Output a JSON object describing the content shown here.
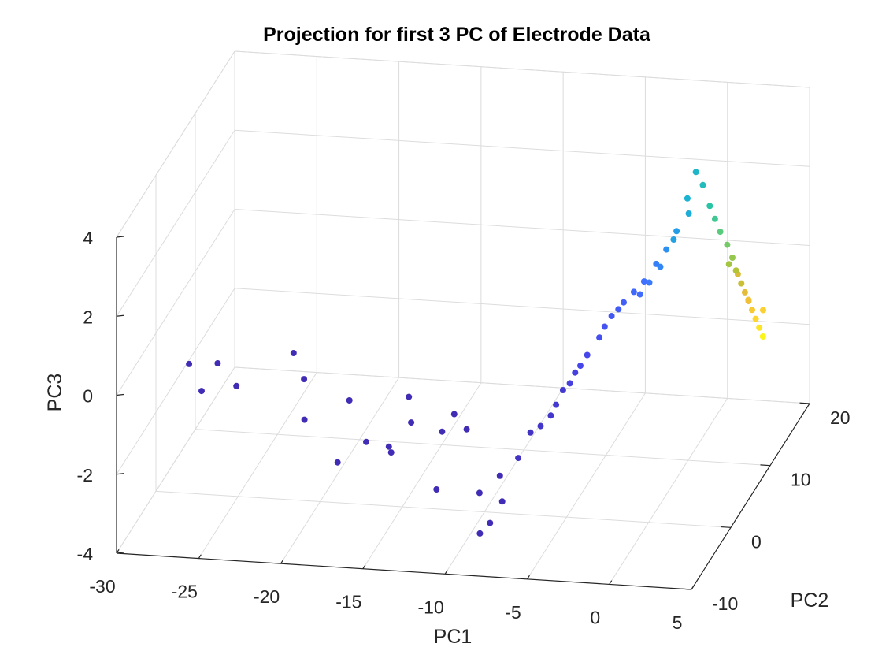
{
  "chart_data": {
    "type": "scatter",
    "dimensions": 3,
    "title": "Projection for first 3 PC of Electrode Data",
    "xlabel": "PC1",
    "ylabel": "PC2",
    "zlabel": "PC3",
    "xlim": [
      -30,
      5
    ],
    "ylim": [
      -10,
      20
    ],
    "zlim": [
      -4,
      4
    ],
    "xticks": [
      "-30",
      "-25",
      "-20",
      "-15",
      "-10",
      "-5",
      "0",
      "5"
    ],
    "yticks": [
      "-10",
      "0",
      "10",
      "20"
    ],
    "zticks": [
      "-4",
      "-2",
      "0",
      "2",
      "4"
    ],
    "grid": true,
    "colormap": "parula",
    "colormap_stops": [
      "#3e26a8",
      "#4746eb",
      "#3f70ff",
      "#2797ef",
      "#1ab3d1",
      "#28c4a5",
      "#67cb73",
      "#b3c336",
      "#f0b93c",
      "#fcd62f",
      "#f9fb14"
    ],
    "points": [
      {
        "x": -27.5,
        "y": -2.0,
        "z": -0.4,
        "c": 0.02
      },
      {
        "x": -26.0,
        "y": -1.0,
        "z": -0.5,
        "c": 0.02
      },
      {
        "x": -26.5,
        "y": -3.0,
        "z": -0.9,
        "c": 0.02
      },
      {
        "x": -24.5,
        "y": -2.5,
        "z": -0.8,
        "c": 0.02
      },
      {
        "x": -21.5,
        "y": -0.5,
        "z": -0.2,
        "c": 0.02
      },
      {
        "x": -20.5,
        "y": -2.0,
        "z": -0.6,
        "c": 0.02
      },
      {
        "x": -20.0,
        "y": -4.0,
        "z": -1.3,
        "c": 0.02
      },
      {
        "x": -17.5,
        "y": -3.0,
        "z": -0.9,
        "c": 0.02
      },
      {
        "x": -17.5,
        "y": -6.0,
        "z": -2.0,
        "c": 0.02
      },
      {
        "x": -16.0,
        "y": -5.0,
        "z": -1.6,
        "c": 0.02
      },
      {
        "x": -14.5,
        "y": -5.5,
        "z": -1.6,
        "c": 0.02
      },
      {
        "x": -14.0,
        "y": -2.5,
        "z": -0.8,
        "c": 0.02
      },
      {
        "x": -13.5,
        "y": -4.0,
        "z": -1.2,
        "c": 0.02
      },
      {
        "x": -14.0,
        "y": -7.0,
        "z": -1.5,
        "c": 0.02
      },
      {
        "x": -11.5,
        "y": -4.5,
        "z": -1.3,
        "c": 0.02
      },
      {
        "x": -11.0,
        "y": -3.5,
        "z": -1.0,
        "c": 0.02
      },
      {
        "x": -10.0,
        "y": -4.5,
        "z": -1.2,
        "c": 0.02
      },
      {
        "x": -11.0,
        "y": -8.0,
        "z": -2.2,
        "c": 0.02
      },
      {
        "x": -8.5,
        "y": -7.5,
        "z": -2.3,
        "c": 0.02
      },
      {
        "x": -7.5,
        "y": -6.5,
        "z": -2.0,
        "c": 0.02
      },
      {
        "x": -7.0,
        "y": -8.0,
        "z": -2.4,
        "c": 0.02
      },
      {
        "x": -7.5,
        "y": -9.0,
        "z": -2.8,
        "c": 0.02
      },
      {
        "x": -8.0,
        "y": -9.5,
        "z": -3.0,
        "c": 0.02
      },
      {
        "x": -6.5,
        "y": -6.0,
        "z": -1.6,
        "c": 0.04
      },
      {
        "x": -6.0,
        "y": -5.0,
        "z": -1.1,
        "c": 0.04
      },
      {
        "x": -5.5,
        "y": -4.5,
        "z": -1.0,
        "c": 0.05
      },
      {
        "x": -5.0,
        "y": -4.0,
        "z": -0.8,
        "c": 0.05
      },
      {
        "x": -4.5,
        "y": -3.0,
        "z": -0.3,
        "c": 0.06
      },
      {
        "x": -4.8,
        "y": -3.5,
        "z": -0.6,
        "c": 0.06
      },
      {
        "x": -4.0,
        "y": -2.0,
        "z": 0.0,
        "c": 0.08
      },
      {
        "x": -4.2,
        "y": -2.5,
        "z": -0.2,
        "c": 0.08
      },
      {
        "x": -3.5,
        "y": -1.0,
        "z": 0.3,
        "c": 0.1
      },
      {
        "x": -3.8,
        "y": -1.5,
        "z": 0.1,
        "c": 0.1
      },
      {
        "x": -3.0,
        "y": 0.0,
        "z": 0.6,
        "c": 0.12
      },
      {
        "x": -2.5,
        "y": 1.0,
        "z": 1.0,
        "c": 0.14
      },
      {
        "x": -2.8,
        "y": 0.5,
        "z": 0.8,
        "c": 0.13
      },
      {
        "x": -2.0,
        "y": 2.0,
        "z": 1.2,
        "c": 0.16
      },
      {
        "x": -2.2,
        "y": 1.5,
        "z": 1.1,
        "c": 0.15
      },
      {
        "x": -1.5,
        "y": 2.5,
        "z": 1.4,
        "c": 0.18
      },
      {
        "x": -1.0,
        "y": 3.0,
        "z": 1.6,
        "c": 0.2
      },
      {
        "x": -1.2,
        "y": 2.8,
        "z": 1.3,
        "c": 0.19
      },
      {
        "x": -0.5,
        "y": 4.0,
        "z": 1.9,
        "c": 0.24
      },
      {
        "x": -0.8,
        "y": 3.5,
        "z": 1.5,
        "c": 0.22
      },
      {
        "x": 0.0,
        "y": 4.5,
        "z": 2.2,
        "c": 0.28
      },
      {
        "x": -0.3,
        "y": 4.2,
        "z": 1.8,
        "c": 0.26
      },
      {
        "x": 0.5,
        "y": 5.0,
        "z": 2.6,
        "c": 0.32
      },
      {
        "x": 0.2,
        "y": 5.5,
        "z": 2.3,
        "c": 0.34
      },
      {
        "x": 1.0,
        "y": 6.0,
        "z": 2.9,
        "c": 0.38
      },
      {
        "x": 0.8,
        "y": 6.5,
        "z": 3.2,
        "c": 0.4
      },
      {
        "x": 1.2,
        "y": 7.0,
        "z": 3.8,
        "c": 0.42
      },
      {
        "x": 1.5,
        "y": 7.5,
        "z": 3.4,
        "c": 0.45
      },
      {
        "x": 1.8,
        "y": 8.0,
        "z": 2.8,
        "c": 0.5
      },
      {
        "x": 2.0,
        "y": 8.5,
        "z": 2.4,
        "c": 0.54
      },
      {
        "x": 2.2,
        "y": 9.0,
        "z": 2.0,
        "c": 0.58
      },
      {
        "x": 2.5,
        "y": 9.5,
        "z": 1.6,
        "c": 0.62
      },
      {
        "x": 2.7,
        "y": 10.0,
        "z": 1.2,
        "c": 0.66
      },
      {
        "x": 2.8,
        "y": 10.5,
        "z": 0.8,
        "c": 0.7
      },
      {
        "x": 3.0,
        "y": 11.0,
        "z": 0.4,
        "c": 0.74
      },
      {
        "x": 3.1,
        "y": 11.5,
        "z": 0.1,
        "c": 0.78
      },
      {
        "x": 3.2,
        "y": 12.0,
        "z": -0.2,
        "c": 0.82
      },
      {
        "x": 3.3,
        "y": 12.5,
        "z": -0.5,
        "c": 0.86
      },
      {
        "x": 3.4,
        "y": 13.0,
        "z": -0.8,
        "c": 0.9
      },
      {
        "x": 3.5,
        "y": 13.5,
        "z": -1.1,
        "c": 0.94
      },
      {
        "x": 3.6,
        "y": 14.0,
        "z": -1.4,
        "c": 0.98
      },
      {
        "x": 3.0,
        "y": 12.8,
        "z": -0.3,
        "c": 0.84
      },
      {
        "x": 2.6,
        "y": 11.8,
        "z": 0.5,
        "c": 0.76
      },
      {
        "x": 2.3,
        "y": 10.8,
        "z": 0.9,
        "c": 0.68
      },
      {
        "x": 3.8,
        "y": 13.2,
        "z": -0.6,
        "c": 0.88
      }
    ]
  }
}
